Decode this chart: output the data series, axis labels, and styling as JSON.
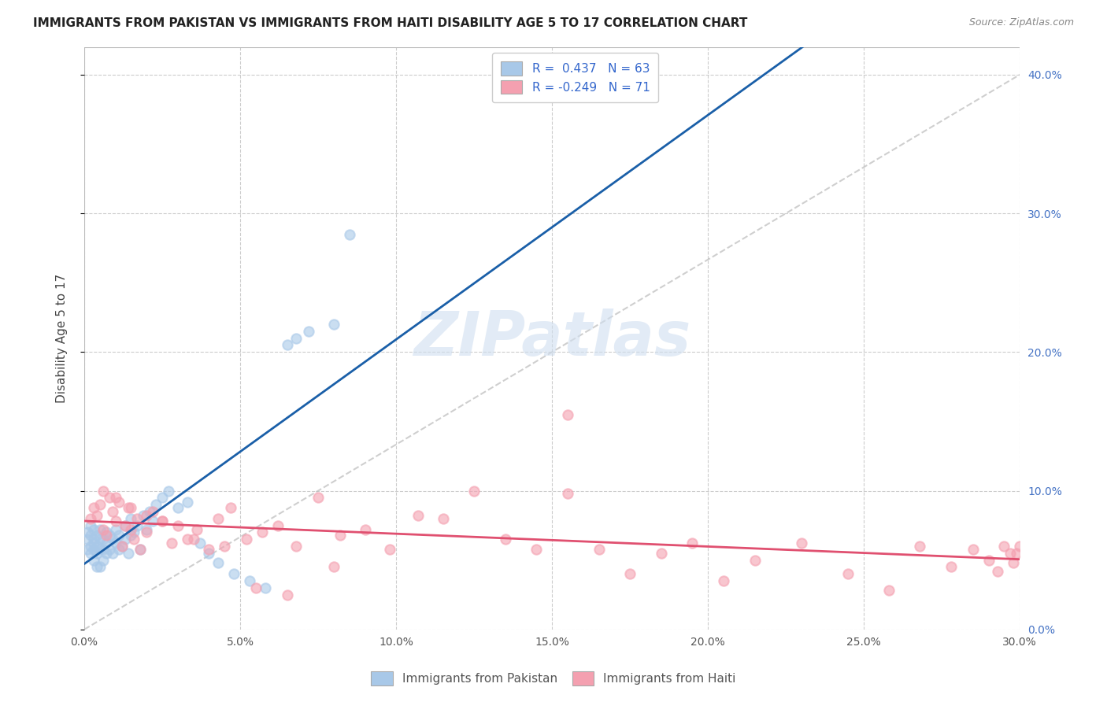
{
  "title": "IMMIGRANTS FROM PAKISTAN VS IMMIGRANTS FROM HAITI DISABILITY AGE 5 TO 17 CORRELATION CHART",
  "source": "Source: ZipAtlas.com",
  "ylabel": "Disability Age 5 to 17",
  "xlim": [
    0.0,
    0.3
  ],
  "ylim": [
    0.0,
    0.42
  ],
  "xticks": [
    0.0,
    0.05,
    0.1,
    0.15,
    0.2,
    0.25,
    0.3
  ],
  "yticks_right": [
    0.0,
    0.1,
    0.2,
    0.3,
    0.4
  ],
  "pakistan_color": "#a8c8e8",
  "haiti_color": "#f4a0b0",
  "pakistan_R": 0.437,
  "pakistan_N": 63,
  "haiti_R": -0.249,
  "haiti_N": 71,
  "legend_pakistan": "Immigrants from Pakistan",
  "legend_haiti": "Immigrants from Haiti",
  "watermark": "ZIPatlas",
  "pakistan_line_color": "#1a5fa8",
  "haiti_line_color": "#e05070",
  "ref_line_color": "#bbbbbb",
  "grid_color": "#cccccc",
  "pakistan_x": [
    0.001,
    0.001,
    0.001,
    0.002,
    0.002,
    0.002,
    0.002,
    0.003,
    0.003,
    0.003,
    0.003,
    0.003,
    0.004,
    0.004,
    0.004,
    0.004,
    0.005,
    0.005,
    0.005,
    0.005,
    0.006,
    0.006,
    0.006,
    0.007,
    0.007,
    0.007,
    0.008,
    0.008,
    0.009,
    0.009,
    0.01,
    0.01,
    0.011,
    0.011,
    0.012,
    0.013,
    0.013,
    0.014,
    0.015,
    0.015,
    0.016,
    0.017,
    0.018,
    0.019,
    0.02,
    0.021,
    0.022,
    0.023,
    0.025,
    0.027,
    0.03,
    0.033,
    0.037,
    0.04,
    0.043,
    0.048,
    0.053,
    0.058,
    0.065,
    0.068,
    0.072,
    0.08,
    0.085
  ],
  "pakistan_y": [
    0.065,
    0.07,
    0.058,
    0.06,
    0.068,
    0.055,
    0.075,
    0.058,
    0.062,
    0.065,
    0.072,
    0.05,
    0.055,
    0.06,
    0.068,
    0.045,
    0.058,
    0.065,
    0.045,
    0.072,
    0.05,
    0.058,
    0.065,
    0.055,
    0.062,
    0.07,
    0.058,
    0.068,
    0.055,
    0.065,
    0.062,
    0.072,
    0.058,
    0.068,
    0.06,
    0.065,
    0.075,
    0.055,
    0.068,
    0.08,
    0.07,
    0.075,
    0.058,
    0.082,
    0.072,
    0.085,
    0.078,
    0.09,
    0.095,
    0.1,
    0.088,
    0.092,
    0.062,
    0.055,
    0.048,
    0.04,
    0.035,
    0.03,
    0.205,
    0.21,
    0.215,
    0.22,
    0.285
  ],
  "haiti_x": [
    0.002,
    0.003,
    0.004,
    0.005,
    0.006,
    0.007,
    0.008,
    0.009,
    0.01,
    0.011,
    0.012,
    0.013,
    0.014,
    0.015,
    0.016,
    0.017,
    0.018,
    0.02,
    0.022,
    0.025,
    0.028,
    0.03,
    0.033,
    0.036,
    0.04,
    0.043,
    0.047,
    0.052,
    0.057,
    0.062,
    0.068,
    0.075,
    0.082,
    0.09,
    0.098,
    0.107,
    0.115,
    0.125,
    0.135,
    0.145,
    0.155,
    0.165,
    0.175,
    0.185,
    0.195,
    0.205,
    0.215,
    0.23,
    0.245,
    0.258,
    0.268,
    0.278,
    0.285,
    0.29,
    0.293,
    0.295,
    0.297,
    0.298,
    0.299,
    0.3,
    0.006,
    0.01,
    0.015,
    0.02,
    0.025,
    0.035,
    0.045,
    0.055,
    0.065,
    0.08,
    0.155
  ],
  "haiti_y": [
    0.08,
    0.088,
    0.082,
    0.09,
    0.072,
    0.068,
    0.095,
    0.085,
    0.078,
    0.092,
    0.06,
    0.075,
    0.088,
    0.072,
    0.065,
    0.08,
    0.058,
    0.07,
    0.085,
    0.078,
    0.062,
    0.075,
    0.065,
    0.072,
    0.058,
    0.08,
    0.088,
    0.065,
    0.07,
    0.075,
    0.06,
    0.095,
    0.068,
    0.072,
    0.058,
    0.082,
    0.08,
    0.1,
    0.065,
    0.058,
    0.155,
    0.058,
    0.04,
    0.055,
    0.062,
    0.035,
    0.05,
    0.062,
    0.04,
    0.028,
    0.06,
    0.045,
    0.058,
    0.05,
    0.042,
    0.06,
    0.055,
    0.048,
    0.055,
    0.06,
    0.1,
    0.095,
    0.088,
    0.082,
    0.078,
    0.065,
    0.06,
    0.03,
    0.025,
    0.045,
    0.098
  ]
}
